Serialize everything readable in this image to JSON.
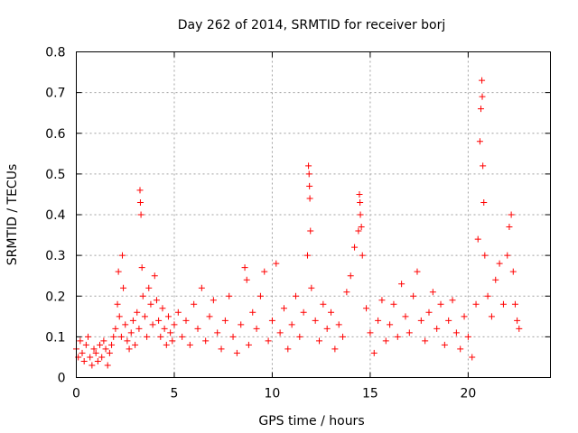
{
  "chart_data": {
    "type": "scatter",
    "title": "Day 262 of 2014, SRMTID for receiver borj",
    "xlabel": "GPS time / hours",
    "ylabel": "SRMTID / TECUs",
    "xlim": [
      0,
      24.2
    ],
    "ylim": [
      0,
      0.8
    ],
    "xticks": [
      0,
      5,
      10,
      15,
      20
    ],
    "xtick_labels": [
      "0",
      "5",
      "10",
      "15",
      "20"
    ],
    "yticks": [
      0,
      0.1,
      0.2,
      0.3,
      0.4,
      0.5,
      0.6,
      0.7,
      0.8
    ],
    "ytick_labels": [
      "0",
      "0.1",
      "0.2",
      "0.3",
      "0.4",
      "0.5",
      "0.6",
      "0.7",
      "0.8"
    ],
    "grid": true,
    "marker": "+",
    "marker_color": "#ff0000",
    "series": [
      {
        "name": "SRMTID",
        "points": [
          [
            0.0,
            0.07
          ],
          [
            0.1,
            0.05
          ],
          [
            0.2,
            0.09
          ],
          [
            0.3,
            0.06
          ],
          [
            0.4,
            0.04
          ],
          [
            0.5,
            0.08
          ],
          [
            0.6,
            0.1
          ],
          [
            0.7,
            0.05
          ],
          [
            0.8,
            0.03
          ],
          [
            0.9,
            0.07
          ],
          [
            1.0,
            0.06
          ],
          [
            1.1,
            0.04
          ],
          [
            1.2,
            0.08
          ],
          [
            1.3,
            0.05
          ],
          [
            1.4,
            0.09
          ],
          [
            1.5,
            0.07
          ],
          [
            1.6,
            0.03
          ],
          [
            1.7,
            0.06
          ],
          [
            1.8,
            0.08
          ],
          [
            1.9,
            0.1
          ],
          [
            2.0,
            0.12
          ],
          [
            2.1,
            0.18
          ],
          [
            2.15,
            0.26
          ],
          [
            2.2,
            0.15
          ],
          [
            2.3,
            0.1
          ],
          [
            2.35,
            0.3
          ],
          [
            2.4,
            0.22
          ],
          [
            2.5,
            0.13
          ],
          [
            2.6,
            0.09
          ],
          [
            2.7,
            0.07
          ],
          [
            2.8,
            0.11
          ],
          [
            2.9,
            0.14
          ],
          [
            3.0,
            0.08
          ],
          [
            3.1,
            0.16
          ],
          [
            3.2,
            0.12
          ],
          [
            3.25,
            0.46
          ],
          [
            3.27,
            0.43
          ],
          [
            3.3,
            0.4
          ],
          [
            3.35,
            0.27
          ],
          [
            3.4,
            0.2
          ],
          [
            3.5,
            0.15
          ],
          [
            3.6,
            0.1
          ],
          [
            3.7,
            0.22
          ],
          [
            3.8,
            0.18
          ],
          [
            3.9,
            0.13
          ],
          [
            4.0,
            0.25
          ],
          [
            4.1,
            0.19
          ],
          [
            4.2,
            0.14
          ],
          [
            4.3,
            0.1
          ],
          [
            4.4,
            0.17
          ],
          [
            4.5,
            0.12
          ],
          [
            4.6,
            0.08
          ],
          [
            4.7,
            0.15
          ],
          [
            4.8,
            0.11
          ],
          [
            4.9,
            0.09
          ],
          [
            5.0,
            0.13
          ],
          [
            5.2,
            0.16
          ],
          [
            5.4,
            0.1
          ],
          [
            5.6,
            0.14
          ],
          [
            5.8,
            0.08
          ],
          [
            6.0,
            0.18
          ],
          [
            6.2,
            0.12
          ],
          [
            6.4,
            0.22
          ],
          [
            6.6,
            0.09
          ],
          [
            6.8,
            0.15
          ],
          [
            7.0,
            0.19
          ],
          [
            7.2,
            0.11
          ],
          [
            7.4,
            0.07
          ],
          [
            7.6,
            0.14
          ],
          [
            7.8,
            0.2
          ],
          [
            8.0,
            0.1
          ],
          [
            8.2,
            0.06
          ],
          [
            8.4,
            0.13
          ],
          [
            8.6,
            0.27
          ],
          [
            8.7,
            0.24
          ],
          [
            8.8,
            0.08
          ],
          [
            9.0,
            0.16
          ],
          [
            9.2,
            0.12
          ],
          [
            9.4,
            0.2
          ],
          [
            9.6,
            0.26
          ],
          [
            9.8,
            0.09
          ],
          [
            10.0,
            0.14
          ],
          [
            10.2,
            0.28
          ],
          [
            10.4,
            0.11
          ],
          [
            10.6,
            0.17
          ],
          [
            10.8,
            0.07
          ],
          [
            11.0,
            0.13
          ],
          [
            11.2,
            0.2
          ],
          [
            11.4,
            0.1
          ],
          [
            11.6,
            0.16
          ],
          [
            11.8,
            0.3
          ],
          [
            11.85,
            0.52
          ],
          [
            11.88,
            0.5
          ],
          [
            11.9,
            0.47
          ],
          [
            11.92,
            0.44
          ],
          [
            11.95,
            0.36
          ],
          [
            12.0,
            0.22
          ],
          [
            12.2,
            0.14
          ],
          [
            12.4,
            0.09
          ],
          [
            12.6,
            0.18
          ],
          [
            12.8,
            0.12
          ],
          [
            13.0,
            0.16
          ],
          [
            13.2,
            0.07
          ],
          [
            13.4,
            0.13
          ],
          [
            13.6,
            0.1
          ],
          [
            13.8,
            0.21
          ],
          [
            14.0,
            0.25
          ],
          [
            14.2,
            0.32
          ],
          [
            14.4,
            0.36
          ],
          [
            14.45,
            0.45
          ],
          [
            14.48,
            0.43
          ],
          [
            14.5,
            0.4
          ],
          [
            14.55,
            0.37
          ],
          [
            14.6,
            0.3
          ],
          [
            14.8,
            0.17
          ],
          [
            15.0,
            0.11
          ],
          [
            15.2,
            0.06
          ],
          [
            15.4,
            0.14
          ],
          [
            15.6,
            0.19
          ],
          [
            15.8,
            0.09
          ],
          [
            16.0,
            0.13
          ],
          [
            16.2,
            0.18
          ],
          [
            16.4,
            0.1
          ],
          [
            16.6,
            0.23
          ],
          [
            16.8,
            0.15
          ],
          [
            17.0,
            0.11
          ],
          [
            17.2,
            0.2
          ],
          [
            17.4,
            0.26
          ],
          [
            17.6,
            0.14
          ],
          [
            17.8,
            0.09
          ],
          [
            18.0,
            0.16
          ],
          [
            18.2,
            0.21
          ],
          [
            18.4,
            0.12
          ],
          [
            18.6,
            0.18
          ],
          [
            18.8,
            0.08
          ],
          [
            19.0,
            0.14
          ],
          [
            19.2,
            0.19
          ],
          [
            19.4,
            0.11
          ],
          [
            19.6,
            0.07
          ],
          [
            19.8,
            0.15
          ],
          [
            20.0,
            0.1
          ],
          [
            20.2,
            0.05
          ],
          [
            20.4,
            0.18
          ],
          [
            20.5,
            0.34
          ],
          [
            20.6,
            0.58
          ],
          [
            20.65,
            0.66
          ],
          [
            20.7,
            0.73
          ],
          [
            20.72,
            0.69
          ],
          [
            20.75,
            0.52
          ],
          [
            20.8,
            0.43
          ],
          [
            20.85,
            0.3
          ],
          [
            21.0,
            0.2
          ],
          [
            21.2,
            0.15
          ],
          [
            21.4,
            0.24
          ],
          [
            21.6,
            0.28
          ],
          [
            21.8,
            0.18
          ],
          [
            22.0,
            0.3
          ],
          [
            22.1,
            0.37
          ],
          [
            22.2,
            0.4
          ],
          [
            22.3,
            0.26
          ],
          [
            22.4,
            0.18
          ],
          [
            22.5,
            0.14
          ],
          [
            22.6,
            0.12
          ]
        ]
      }
    ]
  }
}
